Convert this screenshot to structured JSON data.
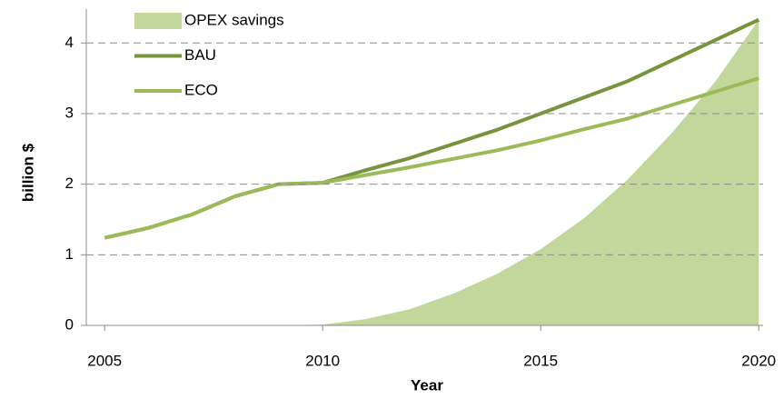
{
  "chart_data": {
    "type": "line",
    "x": [
      2005,
      2006,
      2007,
      2008,
      2009,
      2010,
      2011,
      2012,
      2013,
      2014,
      2015,
      2016,
      2017,
      2018,
      2019,
      2020
    ],
    "series": [
      {
        "name": "OPEX savings",
        "type": "area",
        "color": "#c3d69b",
        "values": [
          null,
          null,
          0,
          0,
          0,
          0.01,
          0.09,
          0.23,
          0.45,
          0.73,
          1.08,
          1.52,
          2.07,
          2.72,
          3.45,
          4.33
        ]
      },
      {
        "name": "BAU",
        "type": "line",
        "color": "#77933c",
        "values": [
          1.24,
          1.38,
          1.57,
          1.83,
          2.0,
          2.02,
          2.2,
          2.37,
          2.57,
          2.77,
          3.0,
          3.23,
          3.46,
          3.75,
          4.04,
          4.33
        ]
      },
      {
        "name": "ECO",
        "type": "line",
        "color": "#9bbb59",
        "values": [
          1.24,
          1.38,
          1.57,
          1.83,
          2.0,
          2.02,
          2.13,
          2.24,
          2.36,
          2.48,
          2.62,
          2.78,
          2.93,
          3.12,
          3.31,
          3.5
        ]
      }
    ],
    "xlabel": "Year",
    "ylabel": "billion $",
    "xlim": [
      2004.58,
      2020.1
    ],
    "xticks": [
      2005,
      2010,
      2015,
      2020
    ],
    "ylim": [
      0,
      4.48
    ],
    "yticks": [
      0,
      1,
      2,
      3,
      4
    ],
    "grid": true,
    "legend": "upper left"
  }
}
